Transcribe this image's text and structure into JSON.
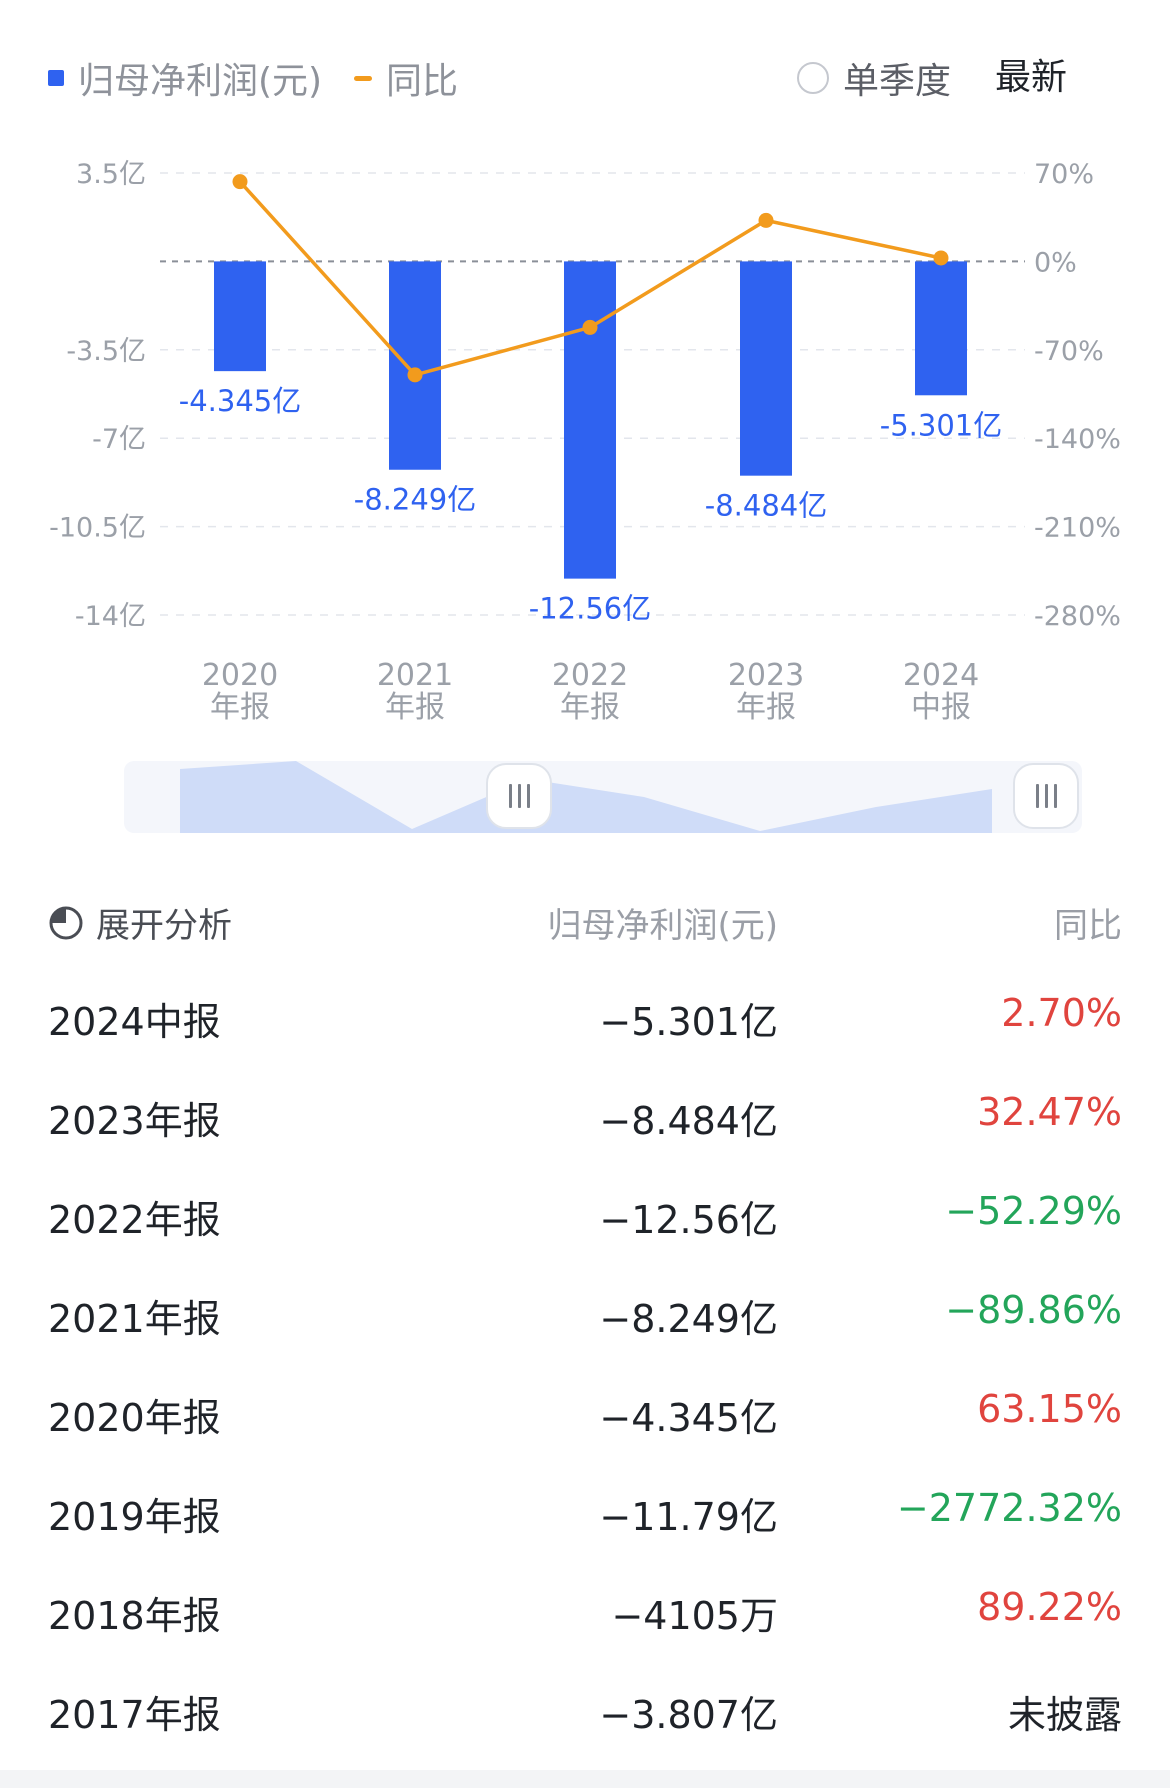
{
  "legend": {
    "net_profit": "归母净利润(元)",
    "yoy": "同比",
    "single_quarter": "单季度",
    "latest": "最新"
  },
  "colors": {
    "bar": "#2f62f0",
    "line": "#f29b1d",
    "positive": "#e0443e",
    "negative": "#23a55a"
  },
  "chart_data": {
    "type": "bar",
    "categories": [
      "2020 年报",
      "2021 年报",
      "2022 年报",
      "2023 年报",
      "2024 中报"
    ],
    "category_lines": [
      [
        "2020",
        "年报"
      ],
      [
        "2021",
        "年报"
      ],
      [
        "2022",
        "年报"
      ],
      [
        "2023",
        "年报"
      ],
      [
        "2024",
        "中报"
      ]
    ],
    "series": [
      {
        "name": "归母净利润(元)",
        "type": "bar",
        "axis": "left",
        "values": [
          -4.345,
          -8.249,
          -12.56,
          -8.484,
          -5.301
        ],
        "labels": [
          "-4.345亿",
          "-8.249亿",
          "-12.56亿",
          "-8.484亿",
          "-5.301亿"
        ]
      },
      {
        "name": "同比",
        "type": "line",
        "axis": "right",
        "values": [
          63.15,
          -89.86,
          -52.29,
          32.47,
          2.7
        ]
      }
    ],
    "left_axis": {
      "unit": "亿",
      "ylim": [
        -14,
        3.5
      ],
      "ticks": [
        3.5,
        -3.5,
        -7,
        -10.5,
        -14
      ],
      "tick_labels": [
        "3.5亿",
        "-3.5亿",
        "-7亿",
        "-10.5亿",
        "-14亿"
      ]
    },
    "right_axis": {
      "unit": "%",
      "ylim": [
        -280,
        70
      ],
      "ticks": [
        70,
        0,
        -70,
        -140,
        -210,
        -280
      ],
      "tick_labels": [
        "70%",
        "0%",
        "-70%",
        "-140%",
        "-210%",
        "-280%"
      ]
    },
    "grid": true
  },
  "table": {
    "expand_label": "展开分析",
    "col_net": "归母净利润(元)",
    "col_yoy": "同比",
    "rows": [
      {
        "period": "2024中报",
        "net": "−5.301亿",
        "yoy": "2.70%",
        "trend": "up"
      },
      {
        "period": "2023年报",
        "net": "−8.484亿",
        "yoy": "32.47%",
        "trend": "up"
      },
      {
        "period": "2022年报",
        "net": "−12.56亿",
        "yoy": "−52.29%",
        "trend": "down"
      },
      {
        "period": "2021年报",
        "net": "−8.249亿",
        "yoy": "−89.86%",
        "trend": "down"
      },
      {
        "period": "2020年报",
        "net": "−4.345亿",
        "yoy": "63.15%",
        "trend": "up"
      },
      {
        "period": "2019年报",
        "net": "−11.79亿",
        "yoy": "−2772.32%",
        "trend": "down"
      },
      {
        "period": "2018年报",
        "net": "−4105万",
        "yoy": "89.22%",
        "trend": "up"
      },
      {
        "period": "2017年报",
        "net": "−3.807亿",
        "yoy": "未披露",
        "trend": "none"
      }
    ]
  }
}
